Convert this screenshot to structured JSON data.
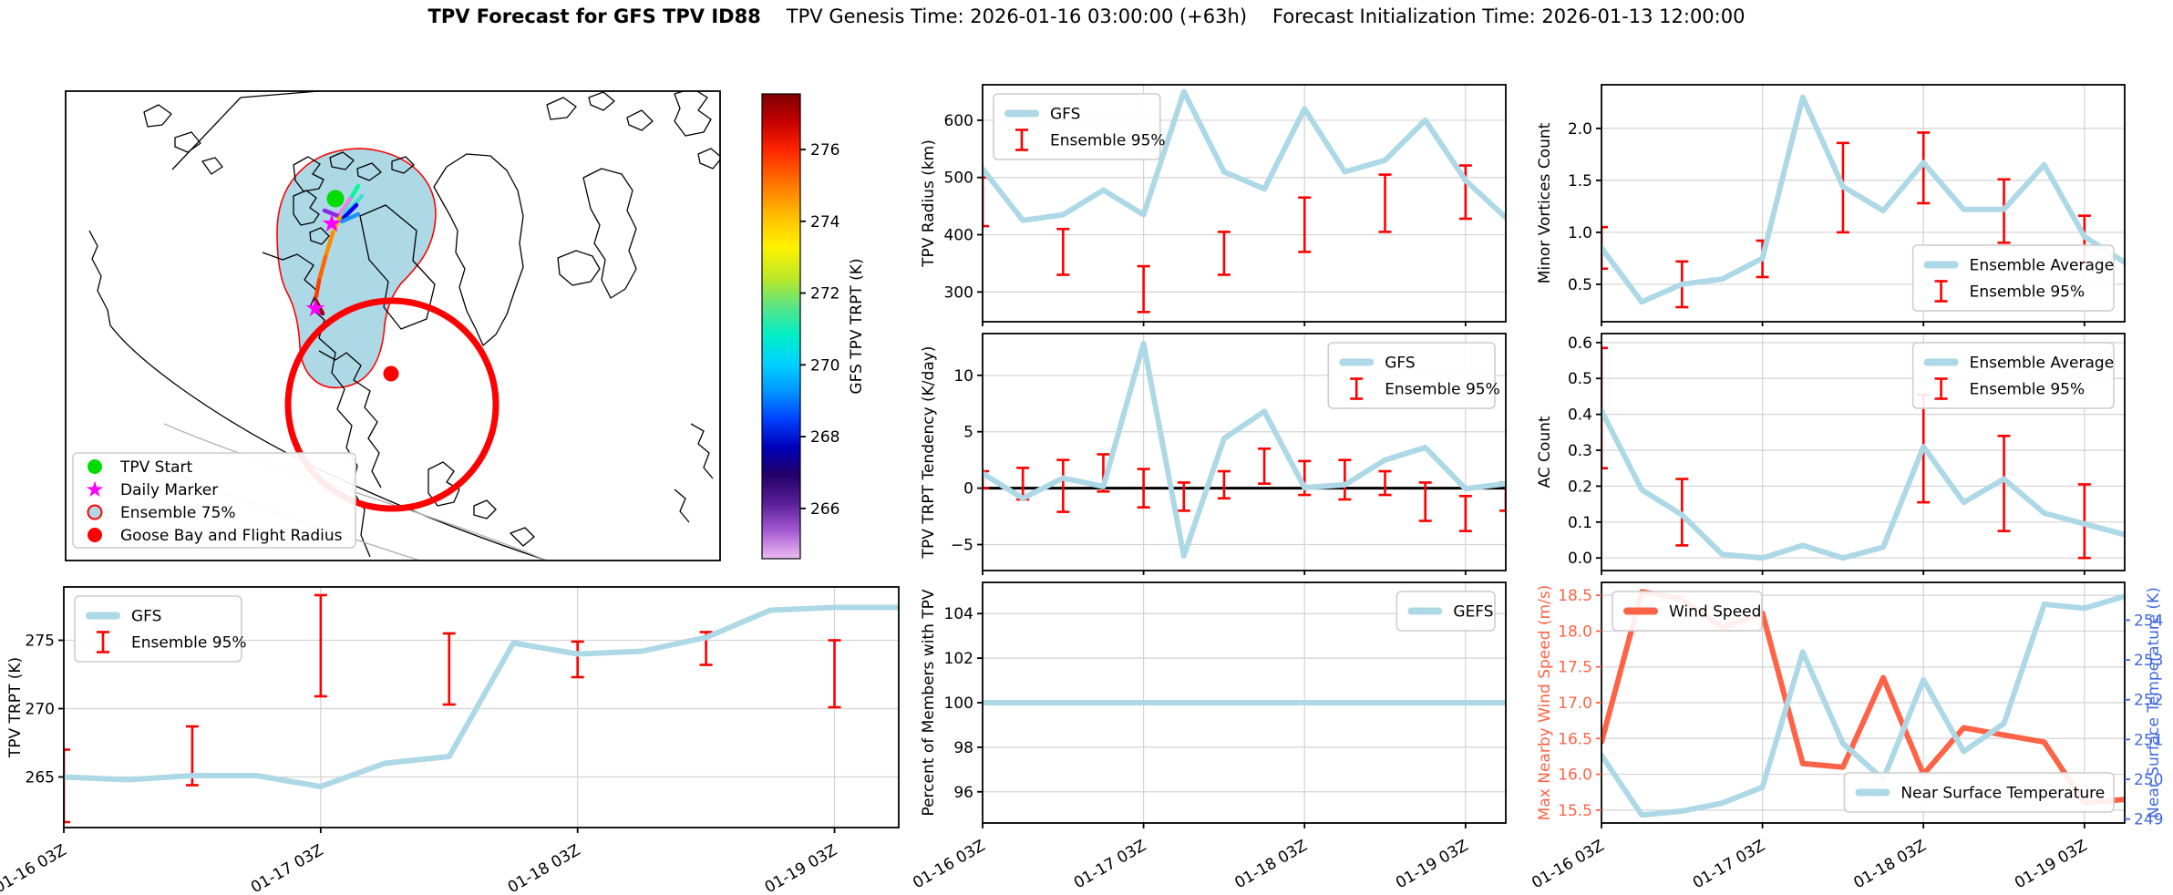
{
  "title": {
    "main": "TPV Forecast for GFS TPV ID88",
    "genesis": "TPV Genesis Time: 2026-01-16 03:00:00 (+63h)",
    "init": "Forecast Initialization Time: 2026-01-13 12:00:00"
  },
  "colors": {
    "series": "#add8e6",
    "error": "#ff0000",
    "wind": "#ff6347",
    "temp_axis": "#4169e1",
    "grid": "#d3d3d3",
    "spine": "#000000",
    "zero_line": "#000000",
    "tpv_start": "#00dd00",
    "daily_marker": "#ff00ff",
    "ensemble_fill": "#add8e6",
    "flight_red": "#ff0000"
  },
  "map": {
    "legend": [
      {
        "label": "TPV Start",
        "marker": "circle",
        "color": "#00dd00"
      },
      {
        "label": "Daily Marker",
        "marker": "star",
        "color": "#ff00ff"
      },
      {
        "label": "Ensemble 75%",
        "marker": "ring",
        "fill": "#add8e6",
        "edge": "#ff0000"
      },
      {
        "label": "Goose Bay and Flight Radius",
        "marker": "circle",
        "color": "#ff0000"
      }
    ],
    "colorbar": {
      "label": "GFS TPV TRPT (K)",
      "ticks": [
        276,
        274,
        272,
        270,
        268,
        266
      ],
      "vmin": 264.6,
      "vmax": 277.55
    }
  },
  "x_axis": {
    "hours": [
      0,
      6,
      12,
      18,
      24,
      30,
      36,
      42,
      48,
      54,
      60,
      66,
      72,
      78
    ],
    "day_ticks": [
      0,
      24,
      48,
      72
    ],
    "day_labels": [
      "01-16 03Z",
      "01-17 03Z",
      "01-18 03Z",
      "01-19 03Z"
    ],
    "xlim": [
      0,
      78
    ]
  },
  "chart_data": [
    {
      "id": "trpt",
      "type": "line",
      "ylabel": "TPV TRPT (K)",
      "yticks": [
        {
          "v": 265,
          "t": "265"
        },
        {
          "v": 270,
          "t": "270"
        },
        {
          "v": 275,
          "t": "275"
        }
      ],
      "ylim": [
        261.3,
        278.9
      ],
      "show_x_labels": true,
      "series": [
        {
          "name": "GFS",
          "color": "#add8e6",
          "values": [
            265.0,
            264.8,
            265.1,
            265.1,
            264.3,
            266.0,
            266.5,
            274.8,
            274.0,
            274.2,
            275.2,
            277.2,
            277.4,
            277.4
          ]
        }
      ],
      "errorbars": {
        "name": "Ensemble 95%",
        "x": [
          0,
          12,
          24,
          36,
          48,
          60,
          72
        ],
        "lo": [
          261.7,
          264.4,
          270.9,
          270.3,
          272.3,
          273.2,
          270.1
        ],
        "hi": [
          267.0,
          268.7,
          278.3,
          275.5,
          274.9,
          275.6,
          275.0
        ]
      },
      "legend": {
        "loc": "tl",
        "entries": [
          {
            "sw": "line",
            "label": "GFS"
          },
          {
            "sw": "err",
            "label": "Ensemble 95%"
          }
        ]
      }
    },
    {
      "id": "radius",
      "type": "line",
      "ylabel": "TPV Radius (km)",
      "yticks": [
        {
          "v": 300,
          "t": "300"
        },
        {
          "v": 400,
          "t": "400"
        },
        {
          "v": 500,
          "t": "500"
        },
        {
          "v": 600,
          "t": "600"
        }
      ],
      "ylim": [
        248,
        662
      ],
      "show_x_labels": false,
      "series": [
        {
          "name": "GFS",
          "color": "#add8e6",
          "values": [
            515,
            425,
            435,
            478,
            435,
            650,
            510,
            480,
            620,
            510,
            530,
            600,
            495,
            430
          ]
        }
      ],
      "errorbars": {
        "name": "Ensemble 95%",
        "x": [
          0,
          12,
          24,
          36,
          48,
          60,
          72
        ],
        "lo": [
          415,
          330,
          265,
          330,
          370,
          405,
          428
        ],
        "hi": [
          500,
          410,
          345,
          405,
          465,
          505,
          521
        ]
      },
      "legend": {
        "loc": "tl",
        "entries": [
          {
            "sw": "line",
            "label": "GFS"
          },
          {
            "sw": "err",
            "label": "Ensemble 95%"
          }
        ]
      }
    },
    {
      "id": "tendency",
      "type": "line",
      "ylabel": "TPV TRPT Tendency (K/day)",
      "yticks": [
        {
          "v": -5,
          "t": "−5"
        },
        {
          "v": 0,
          "t": "0"
        },
        {
          "v": 5,
          "t": "5"
        },
        {
          "v": 10,
          "t": "10"
        }
      ],
      "ylim": [
        -7.3,
        13.7
      ],
      "zero_line": true,
      "show_x_labels": false,
      "series": [
        {
          "name": "GFS",
          "color": "#add8e6",
          "values": [
            1.3,
            -0.9,
            0.9,
            0.15,
            12.8,
            -6.0,
            4.4,
            6.8,
            0.05,
            0.3,
            2.5,
            3.6,
            -0.05,
            0.4
          ]
        }
      ],
      "errorbars": {
        "name": "Ensemble 95%",
        "x": [
          0,
          6,
          12,
          18,
          24,
          30,
          36,
          42,
          48,
          54,
          60,
          66,
          72,
          78
        ],
        "lo": [
          0.0,
          -1.0,
          -2.1,
          -0.3,
          -1.7,
          -2.0,
          -0.9,
          0.4,
          -0.6,
          -1.0,
          -0.6,
          -2.9,
          -3.8,
          -2.0
        ],
        "hi": [
          1.5,
          1.8,
          2.5,
          3.0,
          1.7,
          0.5,
          1.5,
          3.5,
          2.4,
          2.5,
          1.5,
          0.5,
          -0.7,
          0.5
        ]
      },
      "legend": {
        "loc": "tr",
        "entries": [
          {
            "sw": "line",
            "label": "GFS"
          },
          {
            "sw": "err",
            "label": "Ensemble 95%"
          }
        ]
      }
    },
    {
      "id": "percent",
      "type": "line",
      "ylabel": "Percent of Members with TPV",
      "yticks": [
        {
          "v": 96,
          "t": "96"
        },
        {
          "v": 98,
          "t": "98"
        },
        {
          "v": 100,
          "t": "100"
        },
        {
          "v": 102,
          "t": "102"
        },
        {
          "v": 104,
          "t": "104"
        }
      ],
      "ylim": [
        94.6,
        105.4
      ],
      "show_x_labels": true,
      "series": [
        {
          "name": "GEFS",
          "color": "#add8e6",
          "values": [
            100,
            100,
            100,
            100,
            100,
            100,
            100,
            100,
            100,
            100,
            100,
            100,
            100,
            100
          ]
        }
      ],
      "errorbars": null,
      "legend": {
        "loc": "tr",
        "entries": [
          {
            "sw": "line",
            "label": "GEFS"
          }
        ]
      }
    },
    {
      "id": "minor",
      "type": "line",
      "ylabel": "Minor Vortices Count",
      "yticks": [
        {
          "v": 0.5,
          "t": "0.5"
        },
        {
          "v": 1.0,
          "t": "1.0"
        },
        {
          "v": 1.5,
          "t": "1.5"
        },
        {
          "v": 2.0,
          "t": "2.0"
        }
      ],
      "ylim": [
        0.14,
        2.42
      ],
      "show_x_labels": false,
      "series": [
        {
          "name": "Ensemble Average",
          "color": "#add8e6",
          "values": [
            0.85,
            0.33,
            0.5,
            0.55,
            0.75,
            2.3,
            1.44,
            1.21,
            1.67,
            1.22,
            1.22,
            1.65,
            0.96,
            0.71
          ]
        }
      ],
      "errorbars": {
        "name": "Ensemble 95%",
        "x": [
          0,
          12,
          24,
          36,
          48,
          60,
          72
        ],
        "lo": [
          0.65,
          0.28,
          0.57,
          1.0,
          1.28,
          0.9,
          0.71
        ],
        "hi": [
          1.05,
          0.72,
          0.92,
          1.86,
          1.96,
          1.51,
          1.16
        ]
      },
      "legend": {
        "loc": "br",
        "entries": [
          {
            "sw": "line",
            "label": "Ensemble Average"
          },
          {
            "sw": "err",
            "label": "Ensemble 95%"
          }
        ]
      }
    },
    {
      "id": "ac",
      "type": "line",
      "ylabel": "AC Count",
      "yticks": [
        {
          "v": 0.0,
          "t": "0.0"
        },
        {
          "v": 0.1,
          "t": "0.1"
        },
        {
          "v": 0.2,
          "t": "0.2"
        },
        {
          "v": 0.3,
          "t": "0.3"
        },
        {
          "v": 0.4,
          "t": "0.4"
        },
        {
          "v": 0.5,
          "t": "0.5"
        },
        {
          "v": 0.6,
          "t": "0.6"
        }
      ],
      "ylim": [
        -0.035,
        0.625
      ],
      "show_x_labels": false,
      "series": [
        {
          "name": "Ensemble Average",
          "color": "#add8e6",
          "values": [
            0.41,
            0.19,
            0.12,
            0.01,
            0.0,
            0.035,
            0.0,
            0.03,
            0.31,
            0.155,
            0.22,
            0.125,
            0.095,
            0.065
          ]
        }
      ],
      "errorbars": {
        "name": "Ensemble 95%",
        "x": [
          0,
          12,
          24,
          36,
          48,
          60,
          72
        ],
        "lo": [
          0.25,
          0.035,
          0.0,
          0.0,
          0.155,
          0.075,
          0.0
        ],
        "hi": [
          0.585,
          0.22,
          0.0,
          0.0,
          0.455,
          0.34,
          0.205
        ]
      },
      "legend": {
        "loc": "tr",
        "entries": [
          {
            "sw": "line",
            "label": "Ensemble Average"
          },
          {
            "sw": "err",
            "label": "Ensemble 95%"
          }
        ]
      }
    },
    {
      "id": "windtemp",
      "type": "line-dual",
      "ylabel": "Max Nearby Wind Speed (m/s)",
      "ylabel_right": "Near Surface Temperature (K)",
      "yticks": [
        {
          "v": 15.5,
          "t": "15.5"
        },
        {
          "v": 16.0,
          "t": "16.0"
        },
        {
          "v": 16.5,
          "t": "16.5"
        },
        {
          "v": 17.0,
          "t": "17.0"
        },
        {
          "v": 17.5,
          "t": "17.5"
        },
        {
          "v": 18.0,
          "t": "18.0"
        },
        {
          "v": 18.5,
          "t": "18.5"
        }
      ],
      "yticks_right": [
        {
          "v": 249,
          "t": "249"
        },
        {
          "v": 250,
          "t": "250"
        },
        {
          "v": 251,
          "t": "251"
        },
        {
          "v": 252,
          "t": "252"
        },
        {
          "v": 253,
          "t": "253"
        },
        {
          "v": 254,
          "t": "254"
        }
      ],
      "ylim": [
        15.32,
        18.68
      ],
      "ylim_right": [
        248.9,
        254.95
      ],
      "show_x_labels": true,
      "series": [
        {
          "name": "Wind Speed",
          "color": "#ff6347",
          "axis": "left",
          "values": [
            16.45,
            18.55,
            18.45,
            18.05,
            18.25,
            16.15,
            16.1,
            17.35,
            16.0,
            16.65,
            16.55,
            16.45,
            15.6,
            15.65
          ]
        },
        {
          "name": "Near Surface Temperature",
          "color": "#add8e6",
          "axis": "right",
          "values": [
            250.6,
            249.1,
            249.2,
            249.4,
            249.8,
            253.2,
            250.9,
            250.0,
            252.5,
            250.7,
            251.4,
            254.4,
            254.3,
            254.6
          ]
        }
      ],
      "errorbars": null,
      "legend": {
        "loc": "tl",
        "entries": [
          {
            "sw": "line",
            "color": "#ff6347",
            "label": "Wind Speed"
          }
        ]
      },
      "legend2": {
        "loc": "br",
        "entries": [
          {
            "sw": "line",
            "color": "#add8e6",
            "label": "Near Surface Temperature"
          }
        ]
      }
    }
  ]
}
